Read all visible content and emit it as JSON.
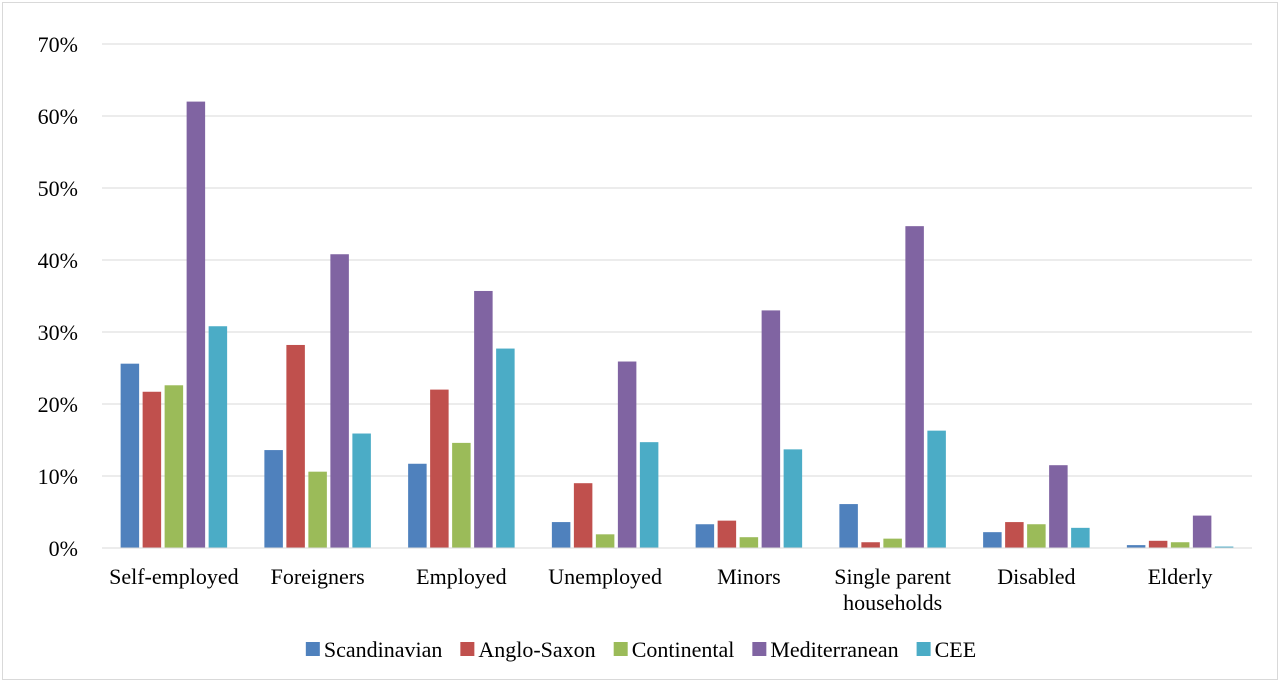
{
  "chart_data": {
    "type": "bar",
    "title": "",
    "xlabel": "",
    "ylabel": "",
    "ylim": [
      0,
      70
    ],
    "y_ticks": [
      "0%",
      "10%",
      "20%",
      "30%",
      "40%",
      "50%",
      "60%",
      "70%"
    ],
    "grid": true,
    "legend_position": "bottom",
    "categories": [
      [
        "Self-employed"
      ],
      [
        "Foreigners"
      ],
      [
        "Employed"
      ],
      [
        "Unemployed"
      ],
      [
        "Minors"
      ],
      [
        "Single parent",
        "households"
      ],
      [
        "Disabled"
      ],
      [
        "Elderly"
      ]
    ],
    "series": [
      {
        "name": "Scandinavian",
        "color": "#4f81bd",
        "values": [
          25.6,
          13.6,
          11.7,
          3.6,
          3.3,
          6.1,
          2.2,
          0.4
        ]
      },
      {
        "name": "Anglo-Saxon",
        "color": "#c0504d",
        "values": [
          21.7,
          28.2,
          22.0,
          9.0,
          3.8,
          0.8,
          3.6,
          1.0
        ]
      },
      {
        "name": "Continental",
        "color": "#9bbb59",
        "values": [
          22.6,
          10.6,
          14.6,
          1.9,
          1.5,
          1.3,
          3.3,
          0.8
        ]
      },
      {
        "name": "Mediterranean",
        "color": "#8064a2",
        "values": [
          62.0,
          40.8,
          35.7,
          25.9,
          33.0,
          44.7,
          11.5,
          4.5
        ]
      },
      {
        "name": "CEE",
        "color": "#4bacc6",
        "values": [
          30.8,
          15.9,
          27.7,
          14.7,
          13.7,
          16.3,
          2.8,
          0.2
        ]
      }
    ]
  }
}
